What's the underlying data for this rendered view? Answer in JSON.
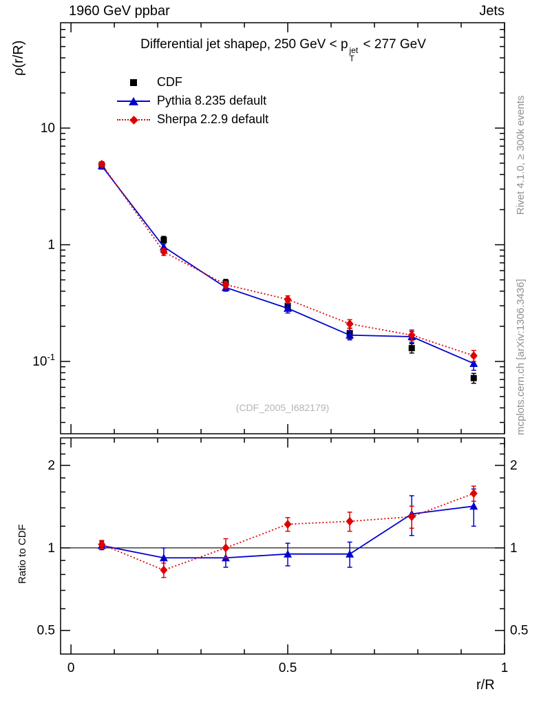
{
  "header": {
    "left": "1960 GeV ppbar",
    "right": "Jets"
  },
  "side_notes": {
    "top": "Rivet 4.1.0, ≥ 300k events",
    "bottom": "mcplots.cern.ch [arXiv:1306.3436]"
  },
  "main_plot": {
    "ylabel": "ρ(r/R)",
    "title": {
      "prefix": "Differential jet shapeρ, 250 GeV < p",
      "sup": "jet",
      "sub": "T",
      "suffix": " < 277 GeV"
    },
    "watermark": "(CDF_2005_I682179)"
  },
  "ratio_plot": {
    "ylabel": "Ratio to CDF"
  },
  "xaxis": {
    "label": "r/R"
  },
  "legend": [
    {
      "label": "CDF"
    },
    {
      "label": "Pythia 8.235 default"
    },
    {
      "label": "Sherpa 2.2.9 default"
    }
  ],
  "chart_data": {
    "type": "line",
    "x": [
      0.071,
      0.214,
      0.357,
      0.5,
      0.643,
      0.786,
      0.929
    ],
    "xlim": [
      -0.024,
      1.0
    ],
    "xlabel": "r/R",
    "xticks": [
      {
        "v": 0,
        "text": "0"
      },
      {
        "v": 0.5,
        "text": "0.5"
      },
      {
        "v": 1,
        "text": "1"
      }
    ],
    "xminor_step": 0.1,
    "main": {
      "ylabel": "ρ(r/R)",
      "yscale": "log",
      "ylim": [
        0.024,
        80
      ],
      "yticks": [
        {
          "v": 10,
          "text": "10"
        },
        {
          "v": 1,
          "text": "1"
        },
        {
          "v": 0.1,
          "text": "10",
          "exp": "-1"
        }
      ],
      "series": [
        {
          "name": "CDF",
          "color": "#000000",
          "marker": "square",
          "line": "none",
          "values": [
            4.8,
            1.1,
            0.47,
            0.3,
            0.175,
            0.13,
            0.072
          ],
          "errors": [
            0.35,
            0.08,
            0.035,
            0.025,
            0.018,
            0.012,
            0.007
          ]
        },
        {
          "name": "Pythia 8.235 default",
          "color": "#0000cc",
          "marker": "triangle",
          "line": "solid",
          "values": [
            4.75,
            0.96,
            0.43,
            0.285,
            0.168,
            0.163,
            0.096
          ],
          "errors": [
            0.2,
            0.06,
            0.03,
            0.025,
            0.015,
            0.018,
            0.012
          ]
        },
        {
          "name": "Sherpa 2.2.9 default",
          "color": "#e00000",
          "marker": "diamond",
          "line": "dotted",
          "values": [
            4.9,
            0.87,
            0.455,
            0.34,
            0.21,
            0.168,
            0.112
          ],
          "errors": [
            0.2,
            0.06,
            0.03,
            0.025,
            0.018,
            0.018,
            0.012
          ]
        }
      ]
    },
    "ratio": {
      "ylabel": "Ratio to CDF",
      "yscale": "log",
      "ylim": [
        0.41,
        2.52
      ],
      "reference_line": 1,
      "yticks": [
        {
          "v": 0.5,
          "text": "0.5"
        },
        {
          "v": 1,
          "text": "1"
        },
        {
          "v": 2,
          "text": "2"
        }
      ],
      "yminor": [
        0.6,
        0.7,
        0.8,
        0.9,
        1.2,
        1.4,
        1.6,
        1.8,
        2.2,
        2.4
      ],
      "series": [
        {
          "name": "Pythia 8.235 default",
          "color": "#0000cc",
          "marker": "triangle",
          "line": "solid",
          "values": [
            1.02,
            0.92,
            0.92,
            0.95,
            0.95,
            1.33,
            1.42
          ],
          "errors": [
            0.035,
            0.08,
            0.07,
            0.09,
            0.1,
            0.22,
            0.22
          ]
        },
        {
          "name": "Sherpa 2.2.9 default",
          "color": "#e00000",
          "marker": "diamond",
          "line": "dotted",
          "values": [
            1.03,
            0.83,
            1.0,
            1.22,
            1.25,
            1.3,
            1.58
          ],
          "errors": [
            0.035,
            0.05,
            0.08,
            0.07,
            0.1,
            0.12,
            0.1
          ]
        }
      ]
    }
  }
}
